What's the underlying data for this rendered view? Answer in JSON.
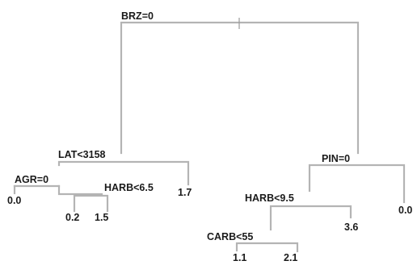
{
  "tree": {
    "root": "BRZ=0",
    "nodes": {
      "lat": "LAT<3158",
      "agr": "AGR=0",
      "harb_left": "HARB<6.5",
      "pin": "PIN=0",
      "harb_right": "HARB<9.5",
      "carb": "CARB<55"
    },
    "leaves": {
      "agr_left": "0.0",
      "harb_left_a": "0.2",
      "harb_left_b": "1.5",
      "lat_right": "1.7",
      "pin_right": "0.0",
      "harb_right_right": "3.6",
      "carb_left": "1.1",
      "carb_right": "2.1"
    }
  }
}
